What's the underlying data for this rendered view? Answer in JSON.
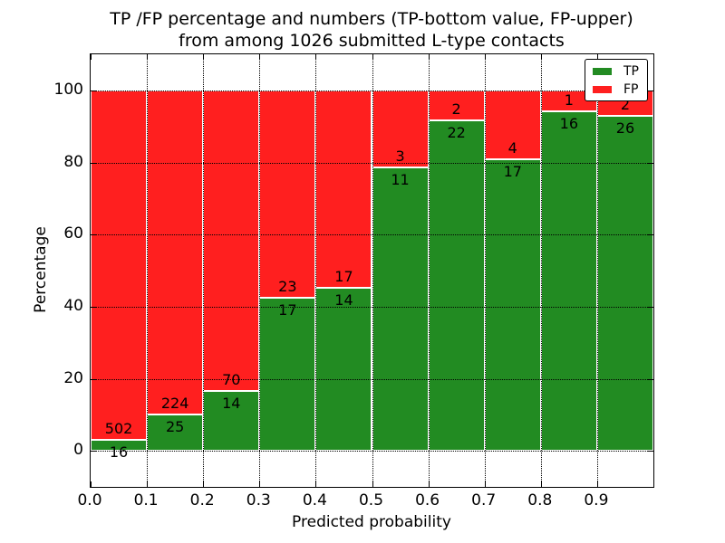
{
  "figure": {
    "title_line1": "TP /FP percentage and numbers (TP-bottom value, FP-upper)",
    "title_line2": "from among 1026 submitted L-type contacts"
  },
  "axes": {
    "xlabel": "Predicted probability",
    "ylabel": "Percentage",
    "xlim": [
      0.0,
      1.0
    ],
    "ylim": [
      -10,
      110
    ],
    "xticks": [
      {
        "label": "0.0",
        "value": 0.0
      },
      {
        "label": "0.1",
        "value": 0.1
      },
      {
        "label": "0.2",
        "value": 0.2
      },
      {
        "label": "0.3",
        "value": 0.3
      },
      {
        "label": "0.4",
        "value": 0.4
      },
      {
        "label": "0.5",
        "value": 0.5
      },
      {
        "label": "0.6",
        "value": 0.6
      },
      {
        "label": "0.7",
        "value": 0.7
      },
      {
        "label": "0.8",
        "value": 0.8
      },
      {
        "label": "0.9",
        "value": 0.9
      }
    ],
    "yticks": [
      {
        "label": "0",
        "value": 0
      },
      {
        "label": "20",
        "value": 20
      },
      {
        "label": "40",
        "value": 40
      },
      {
        "label": "60",
        "value": 60
      },
      {
        "label": "80",
        "value": 80
      },
      {
        "label": "100",
        "value": 100
      }
    ],
    "grid": true
  },
  "legend": {
    "position": "upper right",
    "entries": [
      {
        "label": "TP",
        "color": "#228b22"
      },
      {
        "label": "FP",
        "color": "#ff1f1f"
      }
    ]
  },
  "colors": {
    "tp": "#228b22",
    "fp": "#ff1f1f",
    "grid": "#000000",
    "background": "#ffffff"
  },
  "chart_data": {
    "type": "bar",
    "stacked": true,
    "normalized": "percent_of_bin_total",
    "title": "TP /FP percentage and numbers (TP-bottom value, FP-upper) from among 1026 submitted L-type contacts",
    "xlabel": "Predicted probability",
    "ylabel": "Percentage",
    "total_contacts": 1026,
    "bin_edges": [
      0.0,
      0.1,
      0.2,
      0.3,
      0.4,
      0.5,
      0.6,
      0.7,
      0.8,
      0.9,
      1.0
    ],
    "categories": [
      "0.0-0.1",
      "0.1-0.2",
      "0.2-0.3",
      "0.3-0.4",
      "0.4-0.5",
      "0.5-0.6",
      "0.6-0.7",
      "0.7-0.8",
      "0.8-0.9",
      "0.9-1.0"
    ],
    "series": [
      {
        "name": "TP",
        "color": "#228b22",
        "counts": [
          16,
          25,
          14,
          17,
          14,
          11,
          22,
          17,
          16,
          26
        ]
      },
      {
        "name": "FP",
        "color": "#ff1f1f",
        "counts": [
          502,
          224,
          70,
          23,
          17,
          3,
          2,
          4,
          1,
          2
        ]
      }
    ],
    "tp_percent_approx": [
      3.1,
      10.0,
      16.7,
      42.5,
      45.2,
      78.6,
      91.7,
      81.0,
      94.1,
      92.9
    ],
    "ylim": [
      -10,
      110
    ],
    "grid": true,
    "legend_position": "upper right"
  }
}
